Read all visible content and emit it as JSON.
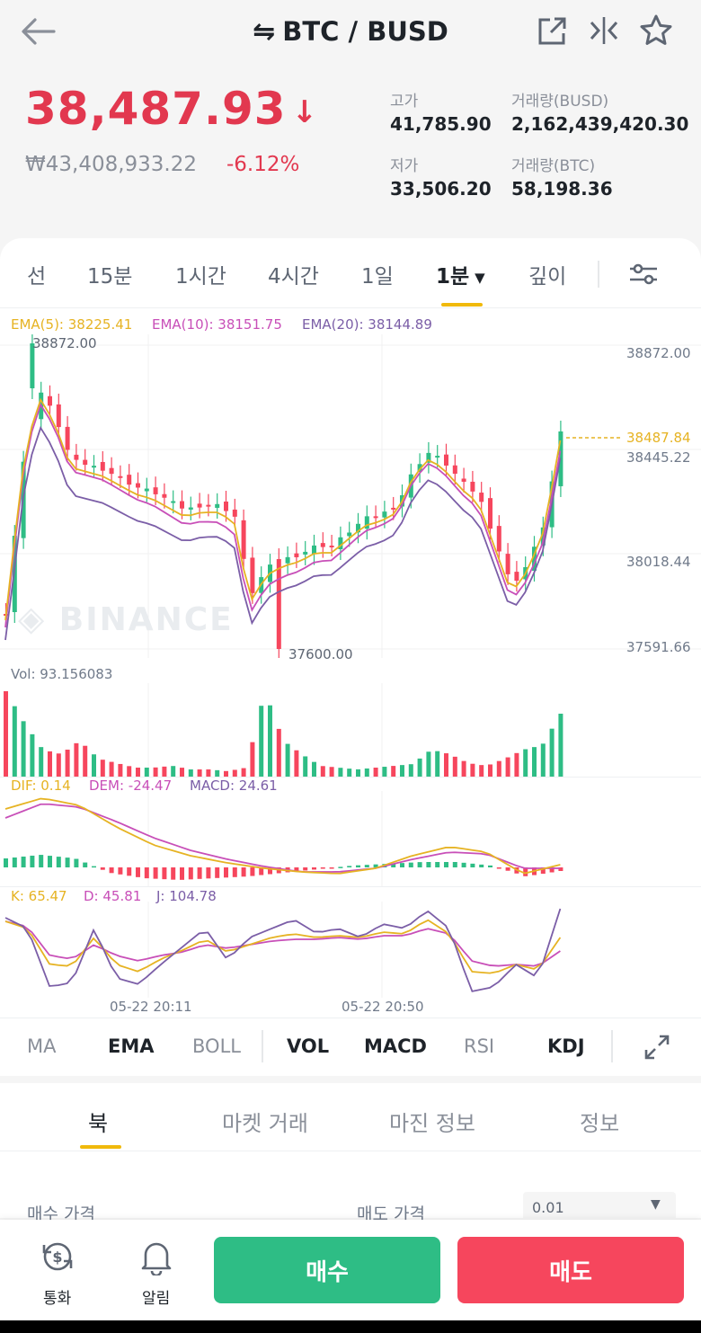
{
  "header": {
    "title": "BTC / BUSD",
    "price": "38,487.93",
    "price_krw": "₩43,408,933.22",
    "change_pct": "-6.12%",
    "stats": {
      "high_label": "고가",
      "high": "41,785.90",
      "low_label": "저가",
      "low": "33,506.20",
      "vol_busd_label": "거래량(BUSD)",
      "vol_busd": "2,162,439,420.30",
      "vol_btc_label": "거래량(BTC)",
      "vol_btc": "58,198.36"
    }
  },
  "timeframe_tabs": [
    "선",
    "15분",
    "1시간",
    "4시간",
    "1일",
    "1분",
    "깊이"
  ],
  "active_timeframe": "1분",
  "chart": {
    "ema5": "EMA(5): 38225.41",
    "ema10": "EMA(10): 38151.75",
    "ema20": "EMA(20): 38144.89",
    "y_ticks": [
      "38872.00",
      "38445.22",
      "38018.44",
      "37591.66"
    ],
    "current_price_tag": "38487.84",
    "high_marker": "38872.00",
    "low_marker": "37600.00",
    "watermark": "BINANCE",
    "vol": "Vol: 93.156083",
    "dif": "DIF: 0.14",
    "dem": "DEM: -24.47",
    "macd": "MACD: 24.61",
    "k": "K: 65.47",
    "d": "D: 45.81",
    "j": "J: 104.78",
    "x_ticks": [
      "05-22 20:11",
      "05-22 20:50"
    ]
  },
  "indicators": [
    "MA",
    "EMA",
    "BOLL",
    "VOL",
    "MACD",
    "RSI",
    "KDJ"
  ],
  "book_tabs": [
    "북",
    "마켓 거래",
    "마진 정보",
    "정보"
  ],
  "form": {
    "buy_price_label": "매수 가격",
    "sell_price_label": "매도 가격",
    "tick_select": "0.01"
  },
  "bottom": {
    "convert_label": "통화",
    "alert_label": "알림",
    "buy_label": "매수",
    "sell_label": "매도"
  },
  "colors": {
    "up": "#2ebd85",
    "down": "#f6465d",
    "ema5": "#e6b323",
    "ema10": "#c84fb8",
    "ema20": "#7b5ea7",
    "accent": "#f0b90b"
  }
}
